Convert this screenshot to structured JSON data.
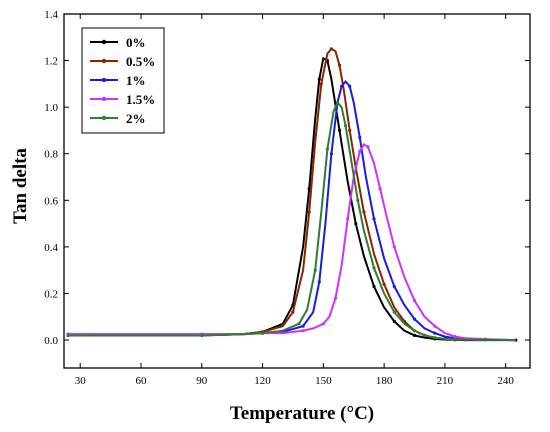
{
  "chart_data": {
    "type": "line",
    "title": "",
    "xlabel": "Temperature (°C)",
    "ylabel": "Tan delta",
    "xlim": [
      22,
      252
    ],
    "ylim": [
      -0.12,
      1.4
    ],
    "xticks": [
      30,
      60,
      90,
      120,
      150,
      180,
      210,
      240
    ],
    "yticks": [
      0.0,
      0.2,
      0.4,
      0.6,
      0.8,
      1.0,
      1.2,
      1.4
    ],
    "grid": false,
    "legend_position": "top-left",
    "series": [
      {
        "name": "0%",
        "color": "#000000",
        "x": [
          24,
          60,
          90,
          110,
          120,
          130,
          135,
          140,
          143,
          146,
          148,
          150,
          152,
          154,
          158,
          162,
          166,
          170,
          175,
          180,
          185,
          190,
          195,
          200,
          205,
          210,
          215,
          220,
          245
        ],
        "y": [
          0.02,
          0.02,
          0.02,
          0.025,
          0.035,
          0.07,
          0.15,
          0.4,
          0.65,
          0.95,
          1.12,
          1.21,
          1.2,
          1.12,
          0.9,
          0.68,
          0.5,
          0.36,
          0.23,
          0.14,
          0.08,
          0.04,
          0.02,
          0.01,
          0.005,
          0.002,
          0.001,
          0.0,
          0.0
        ]
      },
      {
        "name": "0.5%",
        "color": "#8B2500",
        "x": [
          24,
          60,
          90,
          110,
          120,
          130,
          135,
          140,
          143,
          146,
          149,
          152,
          154,
          156,
          158,
          160,
          163,
          166,
          170,
          175,
          180,
          185,
          190,
          195,
          200,
          205,
          210,
          215,
          220,
          245
        ],
        "y": [
          0.02,
          0.02,
          0.02,
          0.025,
          0.035,
          0.06,
          0.12,
          0.3,
          0.55,
          0.85,
          1.1,
          1.23,
          1.25,
          1.24,
          1.18,
          1.08,
          0.9,
          0.74,
          0.55,
          0.37,
          0.24,
          0.14,
          0.08,
          0.04,
          0.02,
          0.01,
          0.005,
          0.002,
          0.001,
          0.0
        ]
      },
      {
        "name": "1%",
        "color": "#1A1AE6",
        "x": [
          24,
          60,
          90,
          110,
          120,
          130,
          140,
          145,
          148,
          151,
          154,
          157,
          159,
          161,
          163,
          165,
          168,
          171,
          175,
          180,
          185,
          190,
          195,
          200,
          205,
          210,
          215,
          220,
          230,
          245
        ],
        "y": [
          0.025,
          0.025,
          0.025,
          0.025,
          0.03,
          0.035,
          0.06,
          0.12,
          0.25,
          0.5,
          0.8,
          1.02,
          1.09,
          1.11,
          1.09,
          1.02,
          0.87,
          0.7,
          0.52,
          0.35,
          0.23,
          0.15,
          0.09,
          0.05,
          0.03,
          0.015,
          0.008,
          0.004,
          0.002,
          0.0
        ]
      },
      {
        "name": "1.5%",
        "color": "#CC33FF",
        "x": [
          24,
          60,
          90,
          110,
          120,
          130,
          140,
          145,
          150,
          153,
          156,
          159,
          162,
          165,
          168,
          170,
          172,
          175,
          178,
          181,
          185,
          190,
          195,
          200,
          205,
          210,
          215,
          220,
          230,
          245
        ],
        "y": [
          0.025,
          0.025,
          0.025,
          0.025,
          0.03,
          0.03,
          0.04,
          0.05,
          0.07,
          0.1,
          0.18,
          0.32,
          0.52,
          0.7,
          0.81,
          0.84,
          0.83,
          0.76,
          0.65,
          0.54,
          0.4,
          0.27,
          0.17,
          0.1,
          0.06,
          0.03,
          0.015,
          0.008,
          0.004,
          0.0
        ]
      },
      {
        "name": "2%",
        "color": "#2E7D32",
        "x": [
          24,
          60,
          90,
          110,
          120,
          130,
          138,
          142,
          146,
          149,
          152,
          155,
          157,
          159,
          161,
          164,
          167,
          170,
          175,
          180,
          185,
          190,
          195,
          200,
          205,
          210,
          215,
          220,
          230,
          245
        ],
        "y": [
          0.02,
          0.02,
          0.02,
          0.025,
          0.03,
          0.04,
          0.07,
          0.13,
          0.3,
          0.55,
          0.82,
          0.98,
          1.02,
          1.0,
          0.92,
          0.76,
          0.6,
          0.47,
          0.31,
          0.2,
          0.12,
          0.07,
          0.04,
          0.02,
          0.01,
          0.005,
          0.003,
          0.002,
          0.001,
          0.0
        ]
      }
    ]
  }
}
